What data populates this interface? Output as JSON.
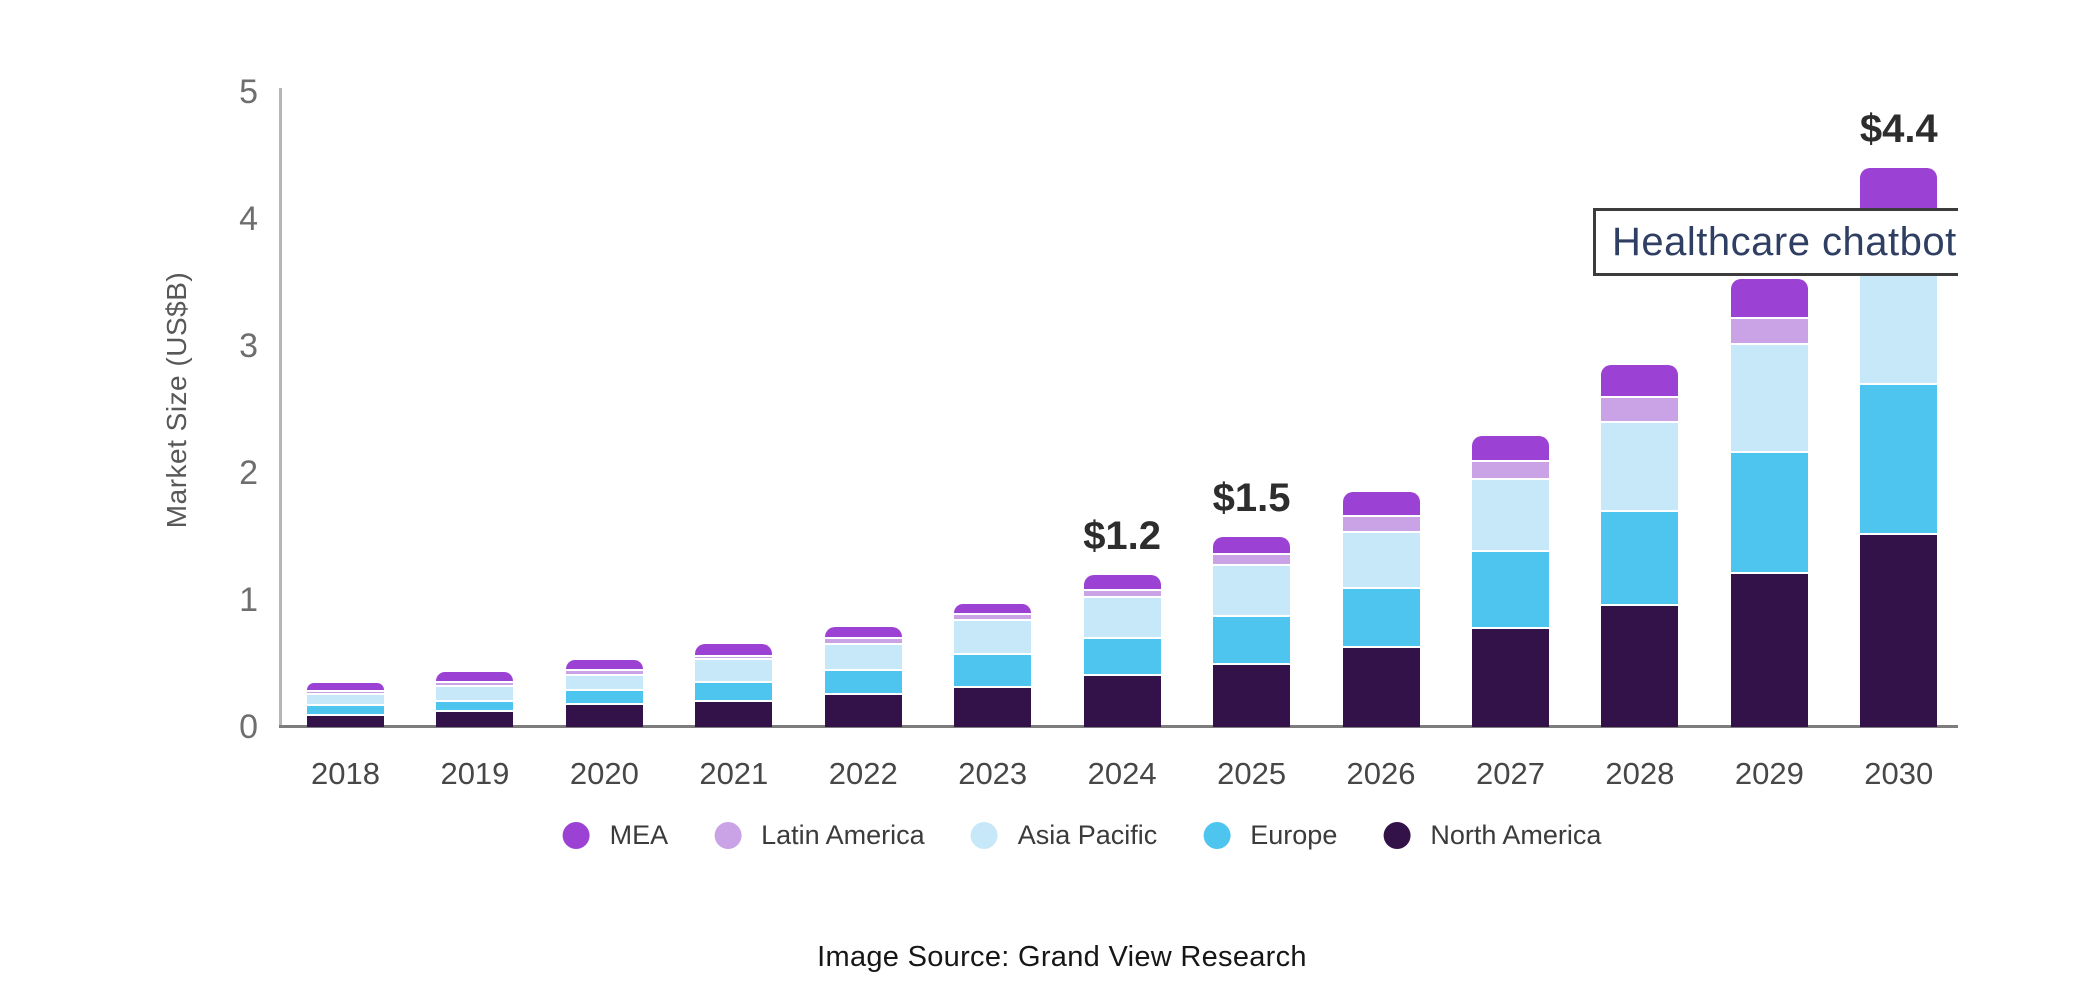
{
  "chart_data": {
    "type": "bar",
    "stacked": true,
    "title": "",
    "xlabel": "",
    "ylabel": "Market Size (US$B)",
    "ylim": [
      0,
      5
    ],
    "yticks": [
      0,
      1,
      2,
      3,
      4,
      5
    ],
    "grid": false,
    "legend_position": "bottom",
    "categories": [
      "2018",
      "2019",
      "2020",
      "2021",
      "2022",
      "2023",
      "2024",
      "2025",
      "2026",
      "2027",
      "2028",
      "2029",
      "2030"
    ],
    "series": [
      {
        "name": "North America",
        "color": "#331149",
        "values": [
          0.1,
          0.13,
          0.19,
          0.21,
          0.27,
          0.32,
          0.42,
          0.5,
          0.64,
          0.79,
          0.97,
          1.22,
          1.53
        ]
      },
      {
        "name": "Europe",
        "color": "#4dc5ef",
        "values": [
          0.08,
          0.08,
          0.11,
          0.15,
          0.19,
          0.26,
          0.29,
          0.38,
          0.46,
          0.6,
          0.74,
          0.95,
          1.18
        ]
      },
      {
        "name": "Asia Pacific",
        "color": "#c6e8f9",
        "values": [
          0.09,
          0.12,
          0.12,
          0.18,
          0.2,
          0.27,
          0.32,
          0.4,
          0.44,
          0.57,
          0.7,
          0.85,
          1.0
        ]
      },
      {
        "name": "Latin America",
        "color": "#c9a3e6",
        "values": [
          0.02,
          0.03,
          0.04,
          0.03,
          0.05,
          0.05,
          0.06,
          0.09,
          0.13,
          0.14,
          0.2,
          0.21,
          0.24
        ]
      },
      {
        "name": "MEA",
        "color": "#9b41d4",
        "values": [
          0.06,
          0.07,
          0.07,
          0.08,
          0.08,
          0.07,
          0.11,
          0.13,
          0.18,
          0.19,
          0.24,
          0.3,
          0.45
        ]
      }
    ],
    "bar_totals": [
      0.35,
      0.43,
      0.53,
      0.65,
      0.79,
      0.97,
      1.2,
      1.5,
      1.85,
      2.29,
      2.85,
      3.53,
      4.4
    ],
    "bar_labels": {
      "2024": "$1.2",
      "2025": "$1.5",
      "2030": "$4.4"
    },
    "legend_order": [
      "MEA",
      "Latin America",
      "Asia Pacific",
      "Europe",
      "North America"
    ]
  },
  "annotation": {
    "text": "Healthcare chatbot m"
  },
  "footer": {
    "text": "Image Source: Grand View Research"
  }
}
